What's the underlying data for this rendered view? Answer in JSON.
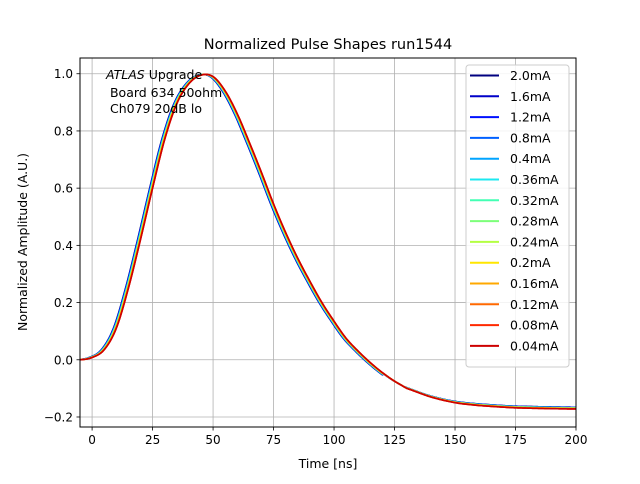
{
  "chart_data": {
    "type": "line",
    "title": "Normalized Pulse Shapes run1544",
    "xlabel": "Time [ns]",
    "ylabel": "Normalized Amplitude (A.U.)",
    "xlim": [
      -5,
      200
    ],
    "ylim": [
      -0.235,
      1.055
    ],
    "xticks": [
      0,
      25,
      50,
      75,
      100,
      125,
      150,
      175,
      200
    ],
    "xtick_labels": [
      "0",
      "25",
      "50",
      "75",
      "100",
      "125",
      "150",
      "175",
      "200"
    ],
    "yticks": [
      -0.2,
      0.0,
      0.2,
      0.4,
      0.6,
      0.8,
      1.0
    ],
    "ytick_labels": [
      "−0.2",
      "0.0",
      "0.2",
      "0.4",
      "0.6",
      "0.8",
      "1.0"
    ],
    "grid": true,
    "legend_position": "top-right",
    "annotation": {
      "italic": "ATLAS",
      "line1_rest": " Upgrade",
      "line2": " Board 634 50ohm",
      "line3": " Ch079 20dB lo"
    },
    "base_curve": {
      "x": [
        -5,
        0,
        5,
        10,
        15,
        20,
        25,
        30,
        35,
        40,
        45,
        50,
        55,
        60,
        65,
        70,
        75,
        80,
        85,
        90,
        95,
        100,
        105,
        110,
        115,
        120,
        125,
        130,
        140,
        150,
        160,
        175,
        200
      ],
      "y": [
        0.0,
        0.008,
        0.035,
        0.11,
        0.25,
        0.42,
        0.6,
        0.77,
        0.895,
        0.965,
        0.995,
        0.99,
        0.94,
        0.86,
        0.76,
        0.655,
        0.545,
        0.445,
        0.355,
        0.275,
        0.2,
        0.135,
        0.075,
        0.03,
        -0.01,
        -0.045,
        -0.075,
        -0.1,
        -0.13,
        -0.15,
        -0.16,
        -0.168,
        -0.172
      ]
    },
    "series": [
      {
        "name": "2.0mA",
        "color": "#00007f",
        "time_shift_ns": -1.2,
        "tail_offset": 0.006
      },
      {
        "name": "1.6mA",
        "color": "#0000c8",
        "time_shift_ns": -1.1,
        "tail_offset": 0.006
      },
      {
        "name": "1.2mA",
        "color": "#0010ff",
        "time_shift_ns": -1.0,
        "tail_offset": 0.005
      },
      {
        "name": "0.8mA",
        "color": "#0060ff",
        "time_shift_ns": -0.9,
        "tail_offset": 0.005
      },
      {
        "name": "0.4mA",
        "color": "#00a4ff",
        "time_shift_ns": -0.8,
        "tail_offset": 0.004
      },
      {
        "name": "0.36mA",
        "color": "#1ce8f0",
        "time_shift_ns": -0.7,
        "tail_offset": 0.004
      },
      {
        "name": "0.32mA",
        "color": "#43ffb4",
        "time_shift_ns": -0.6,
        "tail_offset": 0.003
      },
      {
        "name": "0.28mA",
        "color": "#7dff7a",
        "time_shift_ns": -0.5,
        "tail_offset": 0.003
      },
      {
        "name": "0.24mA",
        "color": "#b4ff43",
        "time_shift_ns": -0.4,
        "tail_offset": 0.002
      },
      {
        "name": "0.2mA",
        "color": "#ffe600",
        "time_shift_ns": -0.3,
        "tail_offset": 0.002
      },
      {
        "name": "0.16mA",
        "color": "#ffa800",
        "time_shift_ns": -0.2,
        "tail_offset": 0.001
      },
      {
        "name": "0.12mA",
        "color": "#ff6800",
        "time_shift_ns": -0.1,
        "tail_offset": 0.001
      },
      {
        "name": "0.08mA",
        "color": "#ff2900",
        "time_shift_ns": 0.0,
        "tail_offset": 0.0
      },
      {
        "name": "0.04mA",
        "color": "#cd0000",
        "time_shift_ns": 0.0,
        "tail_offset": 0.0
      }
    ]
  }
}
